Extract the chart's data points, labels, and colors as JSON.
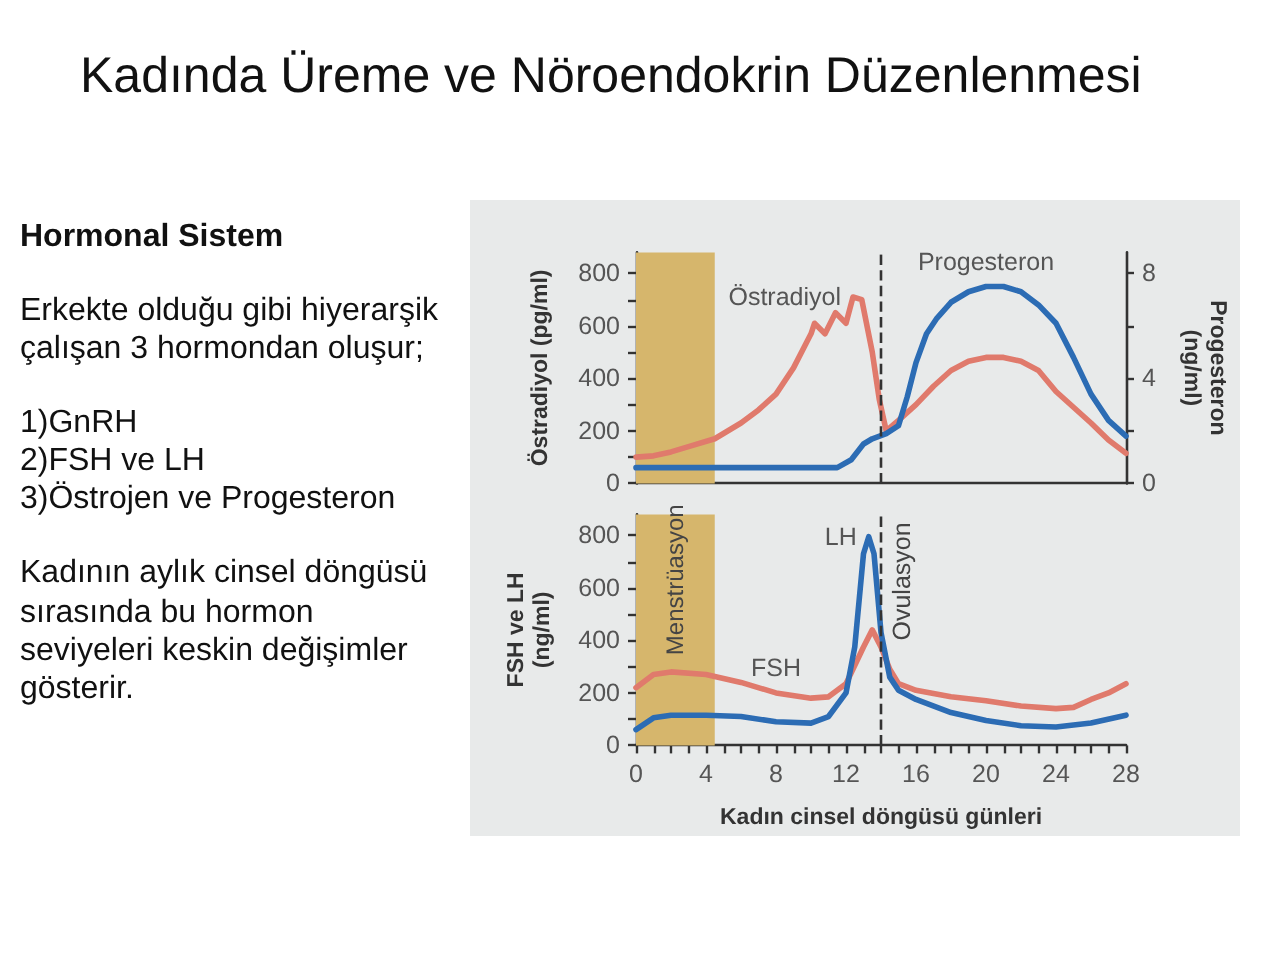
{
  "chart_data": [
    {
      "type": "other",
      "title": "Kadında Üreme ve Nöroendokrin Düzenlenmesi",
      "subtitle": "Hormonal Sistem",
      "annotations": [
        "Erkekte olduğu gibi hiyerarşik çalışan 3 hormondan oluşur;",
        "1)GnRH",
        "2)FSH ve LH",
        "3)Östrojen ve Progesteron",
        "Kadının aylık cinsel döngüsü sırasında bu hormon seviyeleri keskin değişimler gösterir."
      ]
    },
    {
      "type": "line",
      "ylabel": "Östradiyol (pg/ml)",
      "y2label": "Progesteron (ng/ml)",
      "xlim": [
        0,
        28
      ],
      "ylim": [
        0,
        880
      ],
      "yticks": [
        0,
        {
          "value": 100,
          "label": null
        },
        200,
        {
          "value": 300,
          "label": null
        },
        400,
        {
          "value": 500,
          "label": null
        },
        600,
        {
          "value": 700,
          "label": null
        },
        800
      ],
      "y2lim": [
        0,
        8.8
      ],
      "y2ticks": [
        0,
        {
          "value": 2,
          "label": null
        },
        4,
        {
          "value": 6,
          "label": null
        },
        8
      ],
      "tick_labels": "y",
      "bands": [
        {
          "axis": "x",
          "from": 0,
          "to": 4.5,
          "color": "#d6b66c"
        }
      ],
      "ref_lines": [
        {
          "axis": "x",
          "value": 14,
          "line_style": "dashed",
          "color": "#333333"
        }
      ],
      "series": [
        {
          "name": "Östradiyol",
          "color": "#e07a6c",
          "x": [
            0,
            1,
            2,
            3,
            4.5,
            6,
            7,
            8,
            9,
            10,
            10.2,
            10.8,
            11.4,
            12,
            12.4,
            12.9,
            13.5,
            13.9,
            14.3,
            15,
            16,
            17,
            18,
            19,
            20,
            21,
            22,
            23,
            24,
            25,
            26,
            27,
            28
          ],
          "values": [
            100,
            105,
            120,
            140,
            170,
            230,
            280,
            340,
            440,
            570,
            610,
            570,
            650,
            610,
            710,
            700,
            500,
            320,
            200,
            240,
            300,
            370,
            430,
            465,
            480,
            480,
            465,
            430,
            350,
            290,
            230,
            165,
            115
          ]
        },
        {
          "name": "Progesteron",
          "color": "#2c6cb4",
          "axis": "y2",
          "x": [
            0,
            2,
            4,
            6,
            8,
            10,
            11.5,
            12.3,
            13,
            13.5,
            14.3,
            15,
            15.5,
            16,
            16.6,
            17.2,
            18,
            19,
            20,
            21,
            22,
            23,
            24,
            25,
            26,
            27,
            28
          ],
          "values": [
            0.6,
            0.6,
            0.6,
            0.6,
            0.6,
            0.6,
            0.6,
            0.9,
            1.5,
            1.7,
            1.9,
            2.2,
            3.3,
            4.6,
            5.7,
            6.3,
            6.9,
            7.3,
            7.5,
            7.5,
            7.3,
            6.8,
            6.1,
            4.8,
            3.4,
            2.4,
            1.8
          ]
        }
      ]
    },
    {
      "type": "line",
      "ylabel": "FSH ve LH (ng/ml)",
      "xlabel": "Kadın cinsel döngüsü günleri",
      "xlim": [
        0,
        28
      ],
      "xticks": [
        0,
        {
          "value": 1,
          "label": null
        },
        {
          "value": 2,
          "label": null
        },
        {
          "value": 3,
          "label": null
        },
        4,
        {
          "value": 5,
          "label": null
        },
        {
          "value": 6,
          "label": null
        },
        {
          "value": 7,
          "label": null
        },
        8,
        {
          "value": 9,
          "label": null
        },
        {
          "value": 10,
          "label": null
        },
        {
          "value": 11,
          "label": null
        },
        12,
        {
          "value": 13,
          "label": null
        },
        {
          "value": 14,
          "label": null
        },
        {
          "value": 15,
          "label": null
        },
        16,
        {
          "value": 17,
          "label": null
        },
        {
          "value": 18,
          "label": null
        },
        {
          "value": 19,
          "label": null
        },
        20,
        {
          "value": 21,
          "label": null
        },
        {
          "value": 22,
          "label": null
        },
        {
          "value": 23,
          "label": null
        },
        24,
        {
          "value": 25,
          "label": null
        },
        {
          "value": 26,
          "label": null
        },
        {
          "value": 27,
          "label": null
        },
        28
      ],
      "ylim": [
        0,
        880
      ],
      "yticks": [
        0,
        {
          "value": 100,
          "label": null
        },
        200,
        {
          "value": 300,
          "label": null
        },
        400,
        {
          "value": 500,
          "label": null
        },
        600,
        {
          "value": 700,
          "label": null
        },
        800
      ],
      "bands": [
        {
          "axis": "x",
          "from": 0,
          "to": 4.5,
          "color": "#d6b66c",
          "label": "Menstrüasyon"
        }
      ],
      "ref_lines": [
        {
          "axis": "x",
          "value": 14,
          "line_style": "dashed",
          "color": "#333333",
          "label": "Ovulasyon"
        }
      ],
      "series": [
        {
          "name": "FSH",
          "color": "#e07a6c",
          "x": [
            0,
            1,
            2,
            4,
            6,
            8,
            10,
            11,
            12,
            13,
            13.5,
            14,
            14.5,
            15,
            16,
            18,
            20,
            22,
            24,
            25,
            26,
            27,
            28
          ],
          "values": [
            220,
            270,
            280,
            270,
            240,
            200,
            180,
            185,
            235,
            375,
            440,
            375,
            290,
            235,
            210,
            185,
            170,
            150,
            140,
            145,
            175,
            200,
            235
          ]
        },
        {
          "name": "LH",
          "color": "#2c6cb4",
          "x": [
            0,
            1,
            2,
            4,
            6,
            8,
            10,
            11,
            12,
            12.5,
            13,
            13.3,
            13.6,
            14,
            14.5,
            15,
            16,
            18,
            20,
            22,
            24,
            26,
            28
          ],
          "values": [
            60,
            105,
            115,
            115,
            110,
            90,
            85,
            110,
            200,
            375,
            730,
            795,
            730,
            430,
            260,
            210,
            175,
            125,
            95,
            75,
            70,
            85,
            115
          ]
        }
      ]
    }
  ]
}
